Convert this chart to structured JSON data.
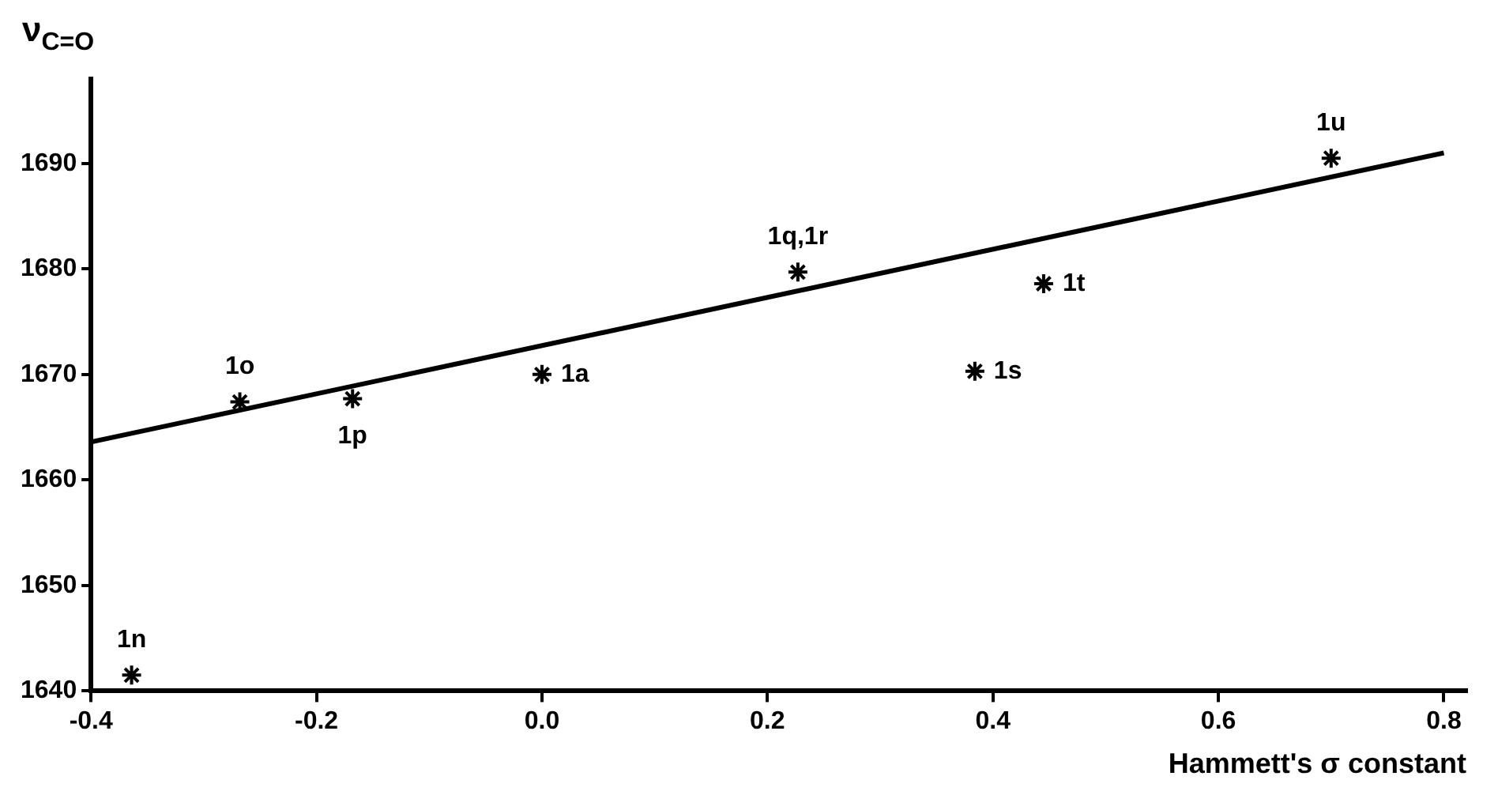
{
  "chart_data": {
    "type": "scatter",
    "xlabel": "Hammett's σ constant",
    "ylabel": "ν$_{C=O}$",
    "x": [
      -0.364,
      -0.268,
      -0.168,
      0.0,
      0.227,
      0.384,
      0.445,
      0.7
    ],
    "series": [
      {
        "color": "#000000",
        "values": [
          1641.5,
          1667.4,
          1667.7,
          1670,
          1679.7,
          1670.3,
          1678.6,
          1690.5
        ]
      },
      {
        "type": "line",
        "color": "#000000",
        "x": [
          -0.4,
          0.8
        ],
        "values": [
          1663.6,
          1691
        ],
        "marker": "none"
      }
    ],
    "marker": "cross",
    "grid": false,
    "legend": false,
    "xlim": [
      -0.4,
      0.82
    ],
    "ylim": [
      1640,
      1698
    ],
    "xticks": [
      -0.4,
      -0.2,
      {
        "value": 0,
        "label": "0.0"
      },
      0.2,
      0.4,
      0.6,
      0.8
    ],
    "yticks": [
      1640,
      1650,
      1660,
      1670,
      1680,
      1690
    ],
    "annotations": [
      {
        "text": "1n",
        "x": -0.364,
        "y": 1641.5
      },
      {
        "text": "1o",
        "x": -0.268,
        "y": 1667.4
      },
      {
        "text": "1p",
        "x": -0.168,
        "y": 1667.7
      },
      {
        "text": "1a",
        "x": 0.0,
        "y": 1670
      },
      {
        "text": "1q,1r",
        "x": 0.227,
        "y": 1679.7
      },
      {
        "text": "1s",
        "x": 0.384,
        "y": 1670.3
      },
      {
        "text": "1t",
        "x": 0.445,
        "y": 1678.6
      },
      {
        "text": "1u",
        "x": 0.7,
        "y": 1690.5
      }
    ]
  }
}
